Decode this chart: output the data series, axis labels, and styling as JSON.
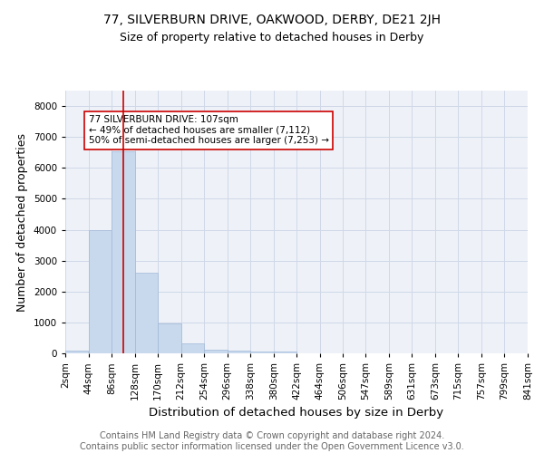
{
  "title": "77, SILVERBURN DRIVE, OAKWOOD, DERBY, DE21 2JH",
  "subtitle": "Size of property relative to detached houses in Derby",
  "xlabel": "Distribution of detached houses by size in Derby",
  "ylabel": "Number of detached properties",
  "footer_line1": "Contains HM Land Registry data © Crown copyright and database right 2024.",
  "footer_line2": "Contains public sector information licensed under the Open Government Licence v3.0.",
  "bin_edges": [
    2,
    44,
    86,
    128,
    170,
    212,
    254,
    296,
    338,
    380,
    422,
    464,
    506,
    547,
    589,
    631,
    673,
    715,
    757,
    799,
    841
  ],
  "bar_heights": [
    80,
    3980,
    6540,
    2620,
    960,
    315,
    120,
    95,
    65,
    55,
    0,
    0,
    0,
    0,
    0,
    0,
    0,
    0,
    0,
    0
  ],
  "bar_color": "#c8d9ed",
  "bar_edge_color": "#a0b8d8",
  "property_size": 107,
  "property_line_color": "#cc0000",
  "annotation_text": "77 SILVERBURN DRIVE: 107sqm\n← 49% of detached houses are smaller (7,112)\n50% of semi-detached houses are larger (7,253) →",
  "annotation_box_edge_color": "#cc0000",
  "ylim": [
    0,
    8500
  ],
  "xlim": [
    2,
    841
  ],
  "grid_color": "#d0d8e8",
  "title_fontsize": 10,
  "subtitle_fontsize": 9,
  "label_fontsize": 9,
  "tick_fontsize": 7.5,
  "footer_fontsize": 7,
  "bg_color": "#eef2f8"
}
